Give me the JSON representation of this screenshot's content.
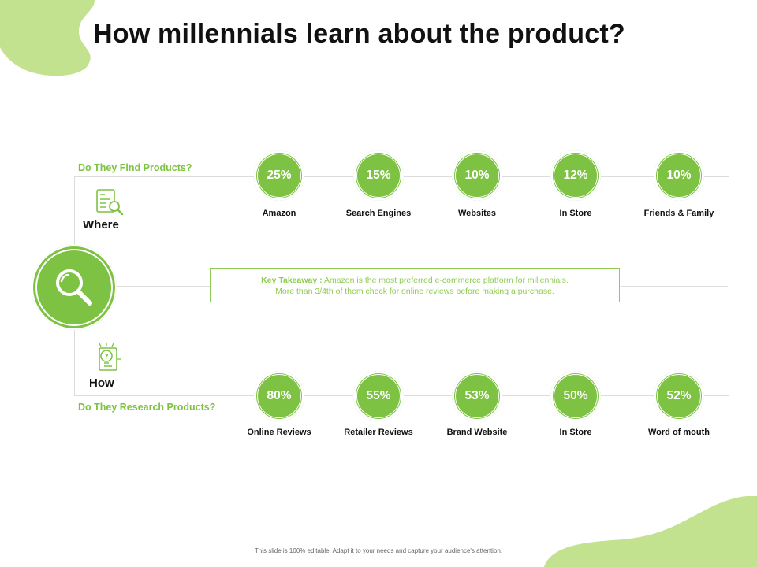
{
  "title": "How millennials learn about the product?",
  "colors": {
    "accent": "#7dc242",
    "blob": "#c3e28f",
    "text": "#111111"
  },
  "find": {
    "section_label": "Do They Find Products?",
    "side_label": "Where",
    "icon": "document-search-icon",
    "items": [
      {
        "value": "25%",
        "label": "Amazon"
      },
      {
        "value": "15%",
        "label": "Search Engines"
      },
      {
        "value": "10%",
        "label": "Websites"
      },
      {
        "value": "12%",
        "label": "In Store"
      },
      {
        "value": "10%",
        "label": "Friends & Family"
      }
    ]
  },
  "research": {
    "section_label": "Do They Research Products?",
    "side_label": "How",
    "icon": "lightbulb-question-icon",
    "items": [
      {
        "value": "80%",
        "label": "Online Reviews"
      },
      {
        "value": "55%",
        "label": "Retailer Reviews"
      },
      {
        "value": "53%",
        "label": "Brand Website"
      },
      {
        "value": "50%",
        "label": "In Store"
      },
      {
        "value": "52%",
        "label": "Word of mouth"
      }
    ]
  },
  "center_icon": "magnifier-icon",
  "takeaway": {
    "label": "Key Takeaway :",
    "line1": "Amazon is the most preferred e-commerce platform for millennials.",
    "line2": "More than 3/4th of them check for online reviews before making a purchase."
  },
  "footer": "This slide is 100% editable. Adapt it to your needs and capture your audience's attention."
}
